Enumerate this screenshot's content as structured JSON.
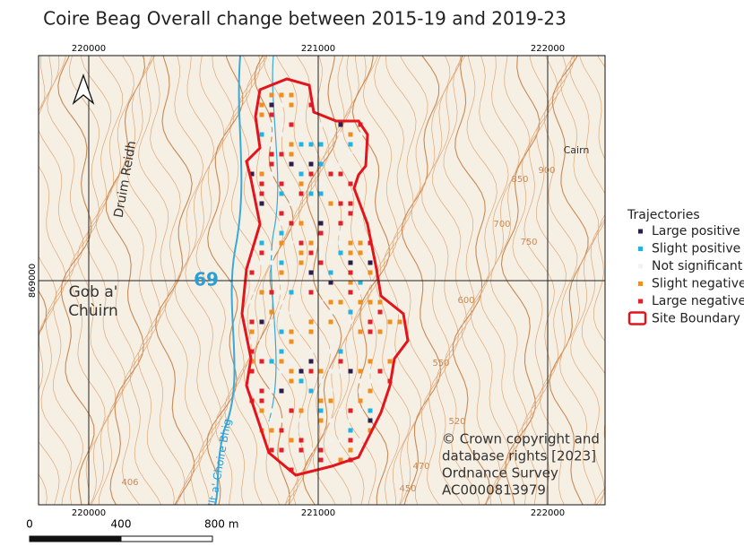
{
  "title": "Coire Beag Overall change between 2015-19 and 2019-23",
  "grid": {
    "top": [
      "220000",
      "221000",
      "222000"
    ],
    "bottom": [
      "220000",
      "221000",
      "222000"
    ],
    "left": [
      "869000"
    ]
  },
  "map_labels": {
    "ridge": "Druim Reidh",
    "place_line1": "Gob a'",
    "place_line2": "Chùirn",
    "square": "69",
    "cairn": "Cairn",
    "stream": "Allt a' Choire Bhig",
    "contours": [
      "406",
      "550",
      "520",
      "470",
      "450",
      "600",
      "700",
      "750",
      "850",
      "900"
    ]
  },
  "legend": {
    "title": "Trajectories",
    "items": [
      {
        "label": "Large positive",
        "color": "#2b1d4d"
      },
      {
        "label": "Slight positive",
        "color": "#1fb4e3"
      },
      {
        "label": "Not significant",
        "color": "#f2f2ee"
      },
      {
        "label": "Slight negative",
        "color": "#ef8f1f"
      },
      {
        "label": "Large negative",
        "color": "#e0202a"
      }
    ],
    "boundary": {
      "label": "Site Boundary",
      "color": "#e3141c"
    }
  },
  "copyright": [
    "© Crown copyright and",
    "database rights [2023]",
    "Ordnance Survey",
    "AC0000813979"
  ],
  "scale_bar": {
    "labels": [
      "0",
      "400",
      "800 m"
    ]
  }
}
